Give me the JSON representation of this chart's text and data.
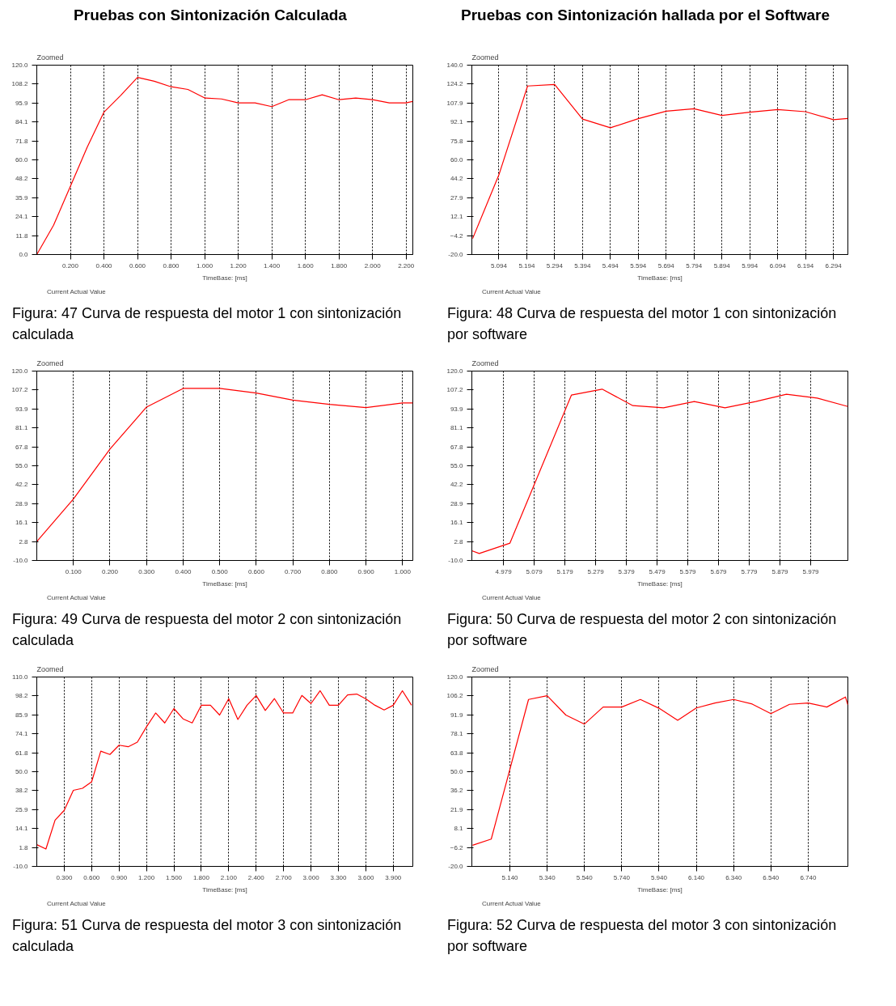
{
  "chart_data": [
    {
      "type": "line",
      "subtitle": "Pruebas con Sintonización Calculada",
      "title": "Zoomed",
      "xlabel": "TimeBase: [ms]",
      "annotations": [
        "Figura: 47  Curva de respuesta del motor 1 con sintonización calculada"
      ],
      "legend": "bottom left",
      "grid": "x",
      "line_style": "solid",
      "xlim": [
        0,
        2.24
      ],
      "xticks": [
        {
          "value": 0.2,
          "label": "0.200"
        },
        {
          "value": 0.4,
          "label": "0.400"
        },
        {
          "value": 0.6,
          "label": "0.600"
        },
        {
          "value": 0.8,
          "label": "0.800"
        },
        {
          "value": 1.0,
          "label": "1.000"
        },
        {
          "value": 1.2,
          "label": "1.200"
        },
        {
          "value": 1.4,
          "label": "1.400"
        },
        {
          "value": 1.6,
          "label": "1.600"
        },
        {
          "value": 1.8,
          "label": "1.800"
        },
        {
          "value": 2.0,
          "label": "2.000"
        },
        {
          "value": 2.2,
          "label": "2.200"
        }
      ],
      "ylim": [
        0,
        120
      ],
      "yticks": [
        {
          "value": 0,
          "label": "0.0"
        },
        11.8,
        24.1,
        35.9,
        48.2,
        {
          "value": 60,
          "label": "60.0"
        },
        71.8,
        84.1,
        95.9,
        108.2,
        {
          "value": 120,
          "label": "120.0"
        }
      ],
      "series": [
        {
          "name": "Current Actual Value",
          "color": "#ff0000",
          "x": [
            0,
            0.1,
            0.2,
            0.3,
            0.4,
            0.5,
            0.6,
            0.7,
            0.8,
            0.9,
            1.0,
            1.1,
            1.2,
            1.3,
            1.4,
            1.5,
            1.6,
            1.7,
            1.8,
            1.9,
            2.0,
            2.1,
            2.2,
            2.24
          ],
          "values": [
            0,
            18.6,
            43.2,
            68,
            90.2,
            100.8,
            112.2,
            109.8,
            106.3,
            104.6,
            99.2,
            98.6,
            96.1,
            96.1,
            93.7,
            98.1,
            98.1,
            101.2,
            98.1,
            99.2,
            98.1,
            96.1,
            96.1,
            97
          ]
        }
      ]
    },
    {
      "type": "line",
      "subtitle": "Pruebas con Sintonización hallada por el Software",
      "title": "Zoomed",
      "xlabel": "TimeBase: [ms]",
      "annotations": [
        "Figura: 48  Curva de respuesta del motor 1 con sintonización por software"
      ],
      "legend": "bottom left",
      "grid": "x",
      "line_style": "solid",
      "xlim": [
        4.997,
        6.346
      ],
      "xticks": [
        5.094,
        5.194,
        5.294,
        5.394,
        5.494,
        5.594,
        5.694,
        5.794,
        5.894,
        5.994,
        6.094,
        6.194,
        6.294
      ],
      "ylim": [
        -20,
        140
      ],
      "yticks": [
        {
          "value": -20,
          "label": "-20.0"
        },
        -4.2,
        12.1,
        27.9,
        44.2,
        {
          "value": 60,
          "label": "60.0"
        },
        75.8,
        92.1,
        107.9,
        124.2,
        {
          "value": 140,
          "label": "140.0"
        }
      ],
      "series": [
        {
          "name": "Current Actual Value",
          "color": "#ff0000",
          "x": [
            5.0,
            5.094,
            5.197,
            5.294,
            5.394,
            5.494,
            5.594,
            5.694,
            5.794,
            5.894,
            5.994,
            6.094,
            6.194,
            6.294,
            6.346
          ],
          "values": [
            -6.4,
            47.3,
            122.4,
            123.7,
            94.4,
            87.1,
            94.8,
            101.1,
            103.2,
            97.5,
            100.2,
            102.5,
            100.7,
            93.9,
            95
          ]
        }
      ]
    },
    {
      "type": "line",
      "title": "Zoomed",
      "xlabel": "TimeBase: [ms]",
      "annotations": [
        "Figura: 49  Curva de respuesta del motor 2 con sintonización calculada"
      ],
      "legend": "bottom left",
      "grid": "x",
      "line_style": "solid",
      "xlim": [
        0,
        1.028
      ],
      "xticks": [
        {
          "value": 0.1,
          "label": "0.100"
        },
        {
          "value": 0.2,
          "label": "0.200"
        },
        {
          "value": 0.3,
          "label": "0.300"
        },
        {
          "value": 0.4,
          "label": "0.400"
        },
        {
          "value": 0.5,
          "label": "0.500"
        },
        {
          "value": 0.6,
          "label": "0.600"
        },
        {
          "value": 0.7,
          "label": "0.700"
        },
        {
          "value": 0.8,
          "label": "0.800"
        },
        {
          "value": 0.9,
          "label": "0.900"
        },
        {
          "value": 1.0,
          "label": "1.000"
        }
      ],
      "ylim": [
        -10,
        120
      ],
      "yticks": [
        {
          "value": -10,
          "label": "-10.0"
        },
        2.8,
        16.1,
        28.9,
        42.2,
        {
          "value": 55,
          "label": "55.0"
        },
        67.8,
        81.1,
        93.9,
        107.2,
        {
          "value": 120,
          "label": "120.0"
        }
      ],
      "series": [
        {
          "name": "Current Actual Value",
          "color": "#ff0000",
          "x": [
            0,
            0.1,
            0.2,
            0.3,
            0.4,
            0.5,
            0.6,
            0.7,
            0.8,
            0.9,
            1.0,
            1.028
          ],
          "values": [
            3.0,
            32.1,
            66.5,
            95.3,
            108.1,
            108.1,
            104.9,
            100.1,
            97.2,
            94.9,
            98.1,
            98.1
          ]
        }
      ]
    },
    {
      "type": "line",
      "title": "Zoomed",
      "xlabel": "TimeBase: [ms]",
      "annotations": [
        "Figura: 50  Curva de respuesta del motor 2 con sintonización por software"
      ],
      "legend": "bottom left",
      "grid": "x",
      "line_style": "solid",
      "xlim": [
        4.876,
        6.1
      ],
      "xticks": [
        4.979,
        5.079,
        5.179,
        5.279,
        5.379,
        5.479,
        5.579,
        5.679,
        5.779,
        5.879,
        5.979
      ],
      "ylim": [
        -10,
        120
      ],
      "yticks": [
        {
          "value": -10,
          "label": "-10.0"
        },
        2.8,
        16.1,
        28.9,
        42.2,
        {
          "value": 55,
          "label": "55.0"
        },
        67.8,
        81.1,
        93.9,
        107.2,
        {
          "value": 120,
          "label": "120.0"
        }
      ],
      "series": [
        {
          "name": "Current Actual Value",
          "color": "#ff0000",
          "x": [
            4.876,
            4.9,
            5.0,
            5.2,
            5.3,
            5.4,
            5.5,
            5.6,
            5.7,
            5.8,
            5.9,
            6.0,
            6.1
          ],
          "values": [
            -3.3,
            -5.2,
            1.9,
            103.5,
            107.6,
            96.3,
            94.8,
            99.1,
            94.8,
            99.1,
            104.1,
            101.5,
            95.7
          ]
        }
      ]
    },
    {
      "type": "line",
      "title": "Zoomed",
      "xlabel": "TimeBase: [ms]",
      "annotations": [
        "Figura: 51  Curva de respuesta del motor 3 con sintonización calculada"
      ],
      "legend": "bottom left",
      "grid": "x",
      "line_style": "solid",
      "xlim": [
        0,
        4.114
      ],
      "xticks": [
        {
          "value": 0.3,
          "label": "0.300"
        },
        {
          "value": 0.6,
          "label": "0.600"
        },
        {
          "value": 0.9,
          "label": "0.900"
        },
        {
          "value": 1.2,
          "label": "1.200"
        },
        {
          "value": 1.5,
          "label": "1.500"
        },
        {
          "value": 1.8,
          "label": "1.800"
        },
        {
          "value": 2.1,
          "label": "2.100"
        },
        {
          "value": 2.4,
          "label": "2.400"
        },
        {
          "value": 2.7,
          "label": "2.700"
        },
        {
          "value": 3.0,
          "label": "3.000"
        },
        {
          "value": 3.3,
          "label": "3.300"
        },
        {
          "value": 3.6,
          "label": "3.600"
        },
        {
          "value": 3.9,
          "label": "3.900"
        }
      ],
      "ylim": [
        -10,
        110
      ],
      "yticks": [
        {
          "value": -10,
          "label": "-10.0"
        },
        1.8,
        14.1,
        25.9,
        38.2,
        {
          "value": 50,
          "label": "50.0"
        },
        61.8,
        74.1,
        85.9,
        98.2,
        {
          "value": 110,
          "label": "110.0"
        }
      ],
      "series": [
        {
          "name": "Current Actual Value",
          "color": "#ff0000",
          "x": [
            0,
            0.1,
            0.2,
            0.3,
            0.4,
            0.5,
            0.6,
            0.7,
            0.8,
            0.9,
            1.0,
            1.1,
            1.2,
            1.3,
            1.4,
            1.5,
            1.6,
            1.7,
            1.8,
            1.9,
            2.0,
            2.1,
            2.2,
            2.3,
            2.4,
            2.5,
            2.6,
            2.7,
            2.8,
            2.9,
            3.0,
            3.1,
            3.2,
            3.3,
            3.4,
            3.5,
            3.6,
            3.7,
            3.8,
            3.9,
            4.0,
            4.1
          ],
          "values": [
            3.8,
            1.0,
            19.3,
            25.5,
            38.2,
            39.5,
            43.6,
            63.0,
            60.9,
            66.8,
            65.8,
            68.7,
            78.4,
            87.2,
            80.9,
            90.0,
            83.5,
            80.9,
            92.1,
            92.1,
            85.9,
            96.3,
            83.1,
            92.1,
            98.3,
            88.8,
            96.3,
            87.2,
            87.2,
            98.3,
            93.2,
            101.3,
            92.1,
            92.1,
            98.7,
            99.2,
            96.2,
            92.1,
            89.1,
            92.1,
            101.3,
            92.1
          ]
        }
      ]
    },
    {
      "type": "line",
      "title": "Zoomed",
      "xlabel": "TimeBase: [ms]",
      "annotations": [
        "Figura: 52  Curva de respuesta del motor 3 con sintonización por software"
      ],
      "legend": "bottom left",
      "grid": "x",
      "line_style": "solid",
      "xlim": [
        4.936,
        6.953
      ],
      "xticks": [
        {
          "value": 5.14,
          "label": "5.140"
        },
        {
          "value": 5.34,
          "label": "5.340"
        },
        {
          "value": 5.54,
          "label": "5.540"
        },
        {
          "value": 5.74,
          "label": "5.740"
        },
        {
          "value": 5.94,
          "label": "5.940"
        },
        {
          "value": 6.14,
          "label": "6.140"
        },
        {
          "value": 6.34,
          "label": "6.340"
        },
        {
          "value": 6.54,
          "label": "6.540"
        },
        {
          "value": 6.74,
          "label": "6.740"
        }
      ],
      "ylim": [
        -20,
        120
      ],
      "yticks": [
        {
          "value": -20,
          "label": "-20.0"
        },
        -6.2,
        8.1,
        21.9,
        36.2,
        {
          "value": 50,
          "label": "50.0"
        },
        63.8,
        78.1,
        91.9,
        106.2,
        {
          "value": 120,
          "label": "120.0"
        }
      ],
      "series": [
        {
          "name": "Current Actual Value",
          "color": "#ff0000",
          "x": [
            4.94,
            5.04,
            5.24,
            5.34,
            5.44,
            5.54,
            5.64,
            5.74,
            5.84,
            5.94,
            6.04,
            6.14,
            6.24,
            6.34,
            6.44,
            6.54,
            6.64,
            6.74,
            6.84,
            6.94,
            6.953
          ],
          "values": [
            -4.4,
            0.2,
            103.4,
            106.2,
            91.9,
            85.2,
            97.8,
            97.8,
            103.4,
            96.9,
            88.0,
            97.1,
            100.8,
            103.4,
            100.0,
            92.9,
            99.8,
            100.8,
            97.8,
            105.2,
            99.4
          ]
        }
      ]
    }
  ]
}
